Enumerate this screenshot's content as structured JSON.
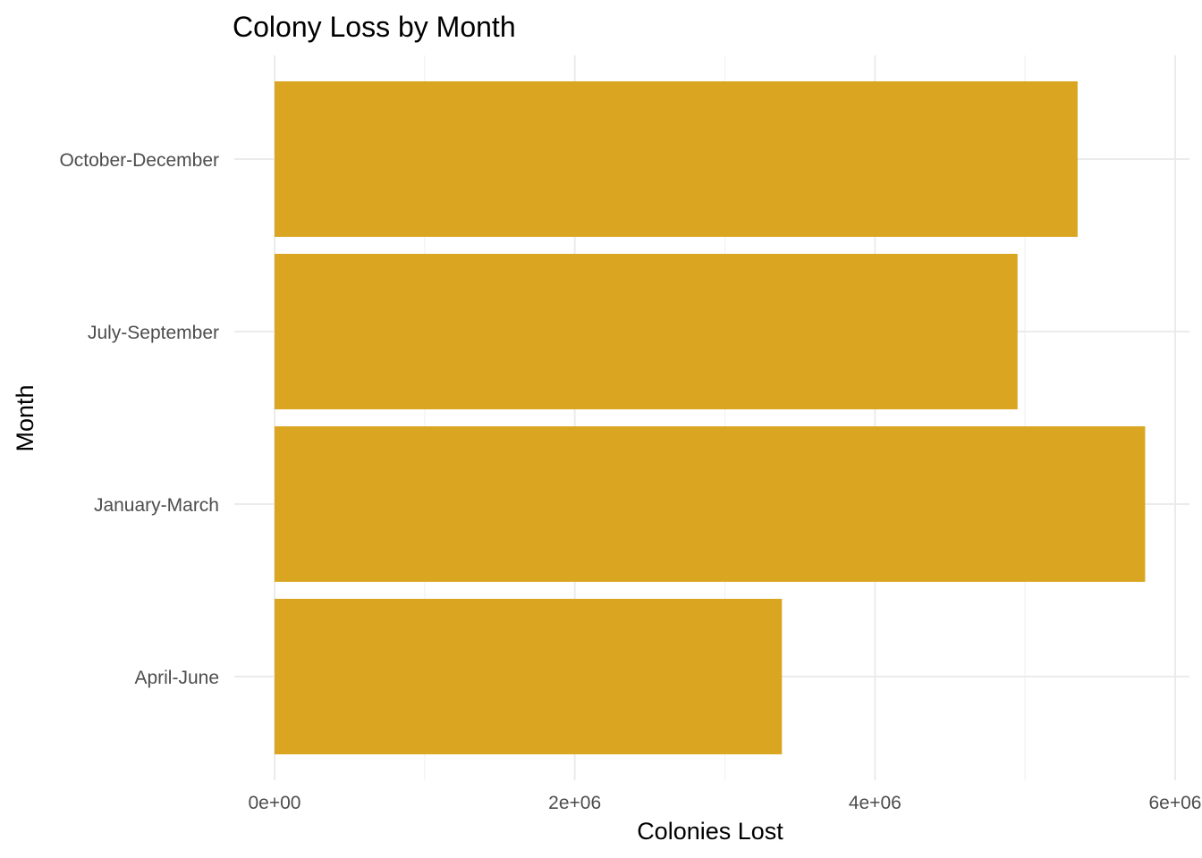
{
  "chart_data": {
    "type": "bar",
    "orientation": "horizontal",
    "title": "Colony Loss by Month",
    "xlabel": "Colonies Lost",
    "ylabel": "Month",
    "categories": [
      "April-June",
      "January-March",
      "July-September",
      "October-December"
    ],
    "values": [
      3380000,
      5800000,
      4950000,
      5350000
    ],
    "xlim": [
      0,
      6000000
    ],
    "x_ticks": [
      0,
      2000000,
      4000000,
      6000000
    ],
    "x_tick_labels": [
      "0e+00",
      "2e+06",
      "4e+06",
      "6e+06"
    ],
    "grid": true,
    "legend": "none",
    "bar_color": "#DAA520"
  }
}
